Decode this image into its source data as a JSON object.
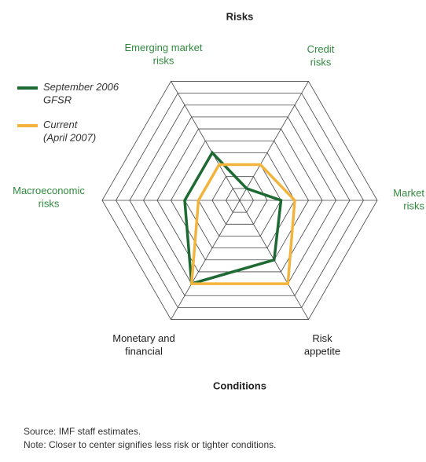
{
  "chart_data": {
    "type": "radar",
    "title": "Risks",
    "subtitle": "Conditions",
    "categories": [
      "Emerging market\nrisks",
      "Credit\nrisks",
      "Market\nrisks",
      "Risk\nappetite",
      "Monetary and\nfinancial",
      "Macroeconomic\nrisks"
    ],
    "label_colors": [
      "#2f8a3c",
      "#2f8a3c",
      "#2f8a3c",
      "#222222",
      "#222222",
      "#2f8a3c"
    ],
    "series": [
      {
        "name": "September 2006\nGFSR",
        "color": "#1d6a32",
        "values": [
          4,
          1,
          3,
          5,
          7,
          4
        ]
      },
      {
        "name": "Current\n(April 2007)",
        "color": "#f2b43c",
        "values": [
          3,
          3,
          4,
          7,
          7,
          3
        ]
      }
    ],
    "rlim": [
      0,
      10
    ],
    "rticks": [
      1,
      2,
      3,
      4,
      5,
      6,
      7,
      8,
      9,
      10
    ],
    "source": "Source: IMF staff estimates.",
    "note": "Note: Closer to center signifies less risk or tighter conditions."
  }
}
